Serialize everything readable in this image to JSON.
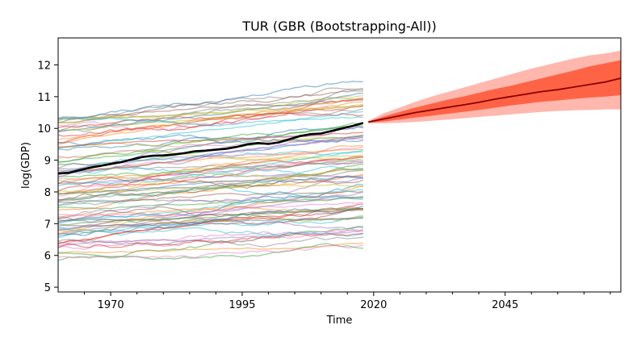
{
  "chart_data": {
    "type": "line",
    "title": "TUR (GBR (Bootstrapping-All))",
    "xlabel": "Time",
    "ylabel": "log(GDP)",
    "xlim": [
      1960,
      2067
    ],
    "ylim": [
      4.85,
      12.85
    ],
    "x_ticks": [
      1970,
      1995,
      2020,
      2045
    ],
    "x_tick_labels": [
      "1970",
      "1995",
      "2020",
      "2045"
    ],
    "y_ticks": [
      5,
      6,
      7,
      8,
      9,
      10,
      11,
      12
    ],
    "y_tick_labels": [
      "5",
      "6",
      "7",
      "8",
      "9",
      "10",
      "11",
      "12"
    ],
    "grid": false,
    "background_series_note": "Approx. 90 thin translucent lines, one per country, spanning 1960-2018",
    "background_series_count": 90,
    "background_colors": [
      "#1f77b4",
      "#ff7f0e",
      "#2ca02c",
      "#d62728",
      "#9467bd",
      "#8c564b",
      "#e377c2",
      "#7f7f7f",
      "#bcbd22",
      "#17becf"
    ],
    "highlight_series": {
      "color": "#000000",
      "x": [
        1960,
        1962,
        1964,
        1966,
        1968,
        1970,
        1972,
        1974,
        1976,
        1978,
        1980,
        1982,
        1984,
        1986,
        1988,
        1990,
        1992,
        1994,
        1996,
        1998,
        2000,
        2002,
        2004,
        2006,
        2008,
        2010,
        2012,
        2014,
        2016,
        2018
      ],
      "y": [
        8.58,
        8.6,
        8.68,
        8.76,
        8.82,
        8.88,
        8.94,
        9.02,
        9.1,
        9.14,
        9.15,
        9.18,
        9.22,
        9.28,
        9.3,
        9.33,
        9.36,
        9.42,
        9.5,
        9.54,
        9.51,
        9.56,
        9.66,
        9.76,
        9.82,
        9.84,
        9.92,
        10.0,
        10.08,
        10.17
      ]
    },
    "forecast": {
      "median_color": "#8b0000",
      "inner_band_color": "#ff5533",
      "outer_band_color": "#ffaaa0",
      "x": [
        2019,
        2022,
        2025,
        2028,
        2031,
        2034,
        2037,
        2040,
        2043,
        2046,
        2049,
        2052,
        2055,
        2058,
        2061,
        2064,
        2067
      ],
      "median": [
        10.2,
        10.3,
        10.4,
        10.5,
        10.58,
        10.66,
        10.74,
        10.82,
        10.92,
        11.0,
        11.08,
        11.16,
        11.22,
        11.3,
        11.38,
        11.46,
        11.58
      ],
      "inner_low": [
        10.18,
        10.22,
        10.28,
        10.34,
        10.4,
        10.46,
        10.52,
        10.58,
        10.65,
        10.72,
        10.78,
        10.84,
        10.88,
        10.93,
        10.97,
        11.0,
        11.05
      ],
      "inner_high": [
        10.22,
        10.38,
        10.52,
        10.66,
        10.78,
        10.9,
        11.0,
        11.12,
        11.24,
        11.34,
        11.46,
        11.58,
        11.7,
        11.82,
        11.95,
        12.05,
        12.15
      ],
      "outer_low": [
        10.16,
        10.16,
        10.18,
        10.2,
        10.24,
        10.28,
        10.32,
        10.36,
        10.4,
        10.44,
        10.48,
        10.52,
        10.55,
        10.57,
        10.58,
        10.6,
        10.6
      ],
      "outer_high": [
        10.24,
        10.48,
        10.66,
        10.84,
        11.0,
        11.14,
        11.28,
        11.42,
        11.56,
        11.7,
        11.84,
        11.96,
        12.08,
        12.2,
        12.3,
        12.36,
        12.45
      ]
    }
  }
}
